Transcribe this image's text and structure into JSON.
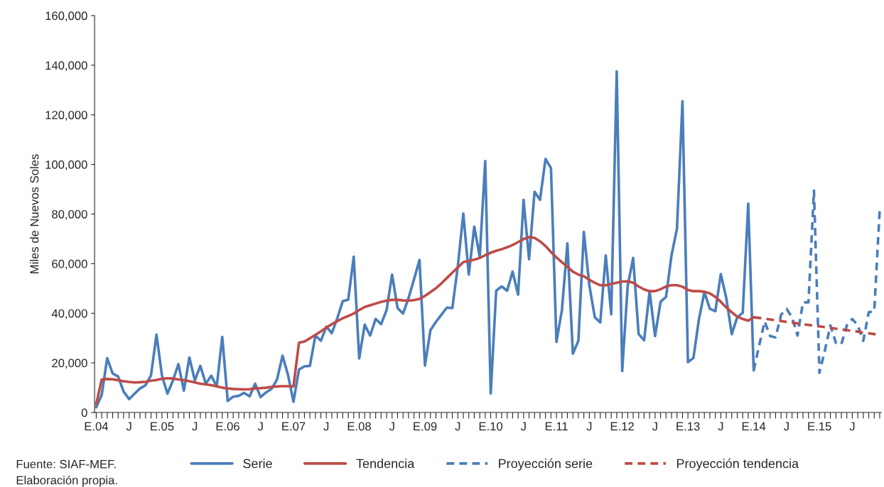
{
  "chart_data": {
    "type": "line",
    "ylabel": "Miles de Nuevos Soles",
    "categories": [
      "E.04",
      null,
      null,
      null,
      null,
      null,
      "J",
      null,
      null,
      null,
      null,
      null,
      "E.05",
      null,
      null,
      null,
      null,
      null,
      "J",
      null,
      null,
      null,
      null,
      null,
      "E.06",
      null,
      null,
      null,
      null,
      null,
      "J",
      null,
      null,
      null,
      null,
      null,
      "E.07",
      null,
      null,
      null,
      null,
      null,
      "J",
      null,
      null,
      null,
      null,
      null,
      "E.08",
      null,
      null,
      null,
      null,
      null,
      "J",
      null,
      null,
      null,
      null,
      null,
      "E.09",
      null,
      null,
      null,
      null,
      null,
      "J",
      null,
      null,
      null,
      null,
      null,
      "E.10",
      null,
      null,
      null,
      null,
      null,
      "J",
      null,
      null,
      null,
      null,
      null,
      "E.11",
      null,
      null,
      null,
      null,
      null,
      "J",
      null,
      null,
      null,
      null,
      null,
      "E.12",
      null,
      null,
      null,
      null,
      null,
      "J",
      null,
      null,
      null,
      null,
      null,
      "E.13",
      null,
      null,
      null,
      null,
      null,
      "J",
      null,
      null,
      null,
      null,
      null,
      "E.14",
      null,
      null,
      null,
      null,
      null,
      "J",
      null,
      null,
      null,
      null,
      null,
      "E.15",
      null,
      null,
      null,
      null,
      null,
      "J",
      null,
      null,
      null,
      null,
      null
    ],
    "series": [
      {
        "name": "Serie",
        "color": "#4a7ebb",
        "line_style": "solid",
        "values": [
          2100,
          7100,
          21900,
          15700,
          14500,
          8400,
          5400,
          7600,
          9700,
          11000,
          15000,
          31400,
          14800,
          7600,
          12900,
          19500,
          8800,
          22200,
          12900,
          18800,
          11600,
          14800,
          10500,
          30500,
          4600,
          6400,
          6700,
          7900,
          6500,
          11600,
          6200,
          8100,
          9500,
          13300,
          22900,
          15200,
          4300,
          17300,
          18600,
          18800,
          31000,
          28900,
          34600,
          32000,
          38000,
          44900,
          45500,
          62800,
          21800,
          35400,
          31000,
          37700,
          35600,
          41300,
          55600,
          42100,
          39900,
          46100,
          53700,
          61500,
          18900,
          33200,
          36500,
          39400,
          42300,
          42100,
          59000,
          80200,
          55600,
          74900,
          62800,
          101400,
          7700,
          49100,
          50800,
          49100,
          56800,
          47500,
          85700,
          61800,
          89000,
          85700,
          102200,
          98500,
          28400,
          41300,
          68200,
          23700,
          28900,
          72800,
          51300,
          38400,
          36300,
          63300,
          39600,
          137500,
          16700,
          51000,
          62300,
          31600,
          29100,
          48900,
          30800,
          44600,
          46600,
          63300,
          74200,
          125500,
          20300,
          22000,
          37500,
          48500,
          41800,
          40800,
          55800,
          46100,
          31600,
          38400,
          40200,
          84200,
          17000,
          null,
          null,
          null,
          null,
          null,
          null,
          null,
          null,
          null,
          null,
          null,
          null,
          null,
          null,
          null,
          null,
          null,
          null,
          null,
          null,
          null,
          null,
          null
        ]
      },
      {
        "name": "Tendencia",
        "color": "#be4b48",
        "line_style": "solid",
        "values": [
          3300,
          13300,
          13500,
          13400,
          13000,
          12600,
          12300,
          12100,
          12200,
          12400,
          12800,
          13100,
          13600,
          13800,
          13700,
          13300,
          13000,
          12600,
          12100,
          11600,
          11300,
          11000,
          10500,
          10000,
          9700,
          9500,
          9400,
          9300,
          9400,
          9700,
          9800,
          10000,
          10300,
          10500,
          10600,
          10600,
          10500,
          28100,
          28600,
          29900,
          31300,
          32700,
          34200,
          35600,
          36800,
          38000,
          38900,
          39900,
          41300,
          42500,
          43200,
          43900,
          44600,
          45100,
          45400,
          45400,
          45200,
          45100,
          45300,
          45800,
          47000,
          48500,
          50100,
          52000,
          54200,
          56400,
          58500,
          60600,
          61100,
          61600,
          62300,
          63400,
          64400,
          65200,
          65800,
          66600,
          67500,
          68700,
          69900,
          70700,
          70400,
          69000,
          67100,
          64700,
          62500,
          60600,
          58700,
          56800,
          55600,
          54900,
          53500,
          52300,
          51300,
          51300,
          51800,
          52300,
          52800,
          52900,
          52300,
          50800,
          49600,
          48900,
          48900,
          49700,
          50800,
          51300,
          51300,
          50700,
          49400,
          48900,
          48900,
          48700,
          48000,
          46600,
          44600,
          42300,
          40400,
          38600,
          37700,
          37000,
          38400,
          null,
          null,
          null,
          null,
          null,
          null,
          null,
          null,
          null,
          null,
          null,
          null,
          null,
          null,
          null,
          null,
          null,
          null,
          null,
          null,
          null,
          null,
          null
        ]
      },
      {
        "name": "Proyección serie",
        "color": "#4a7ebb",
        "line_style": "dashed",
        "values": [
          null,
          null,
          null,
          null,
          null,
          null,
          null,
          null,
          null,
          null,
          null,
          null,
          null,
          null,
          null,
          null,
          null,
          null,
          null,
          null,
          null,
          null,
          null,
          null,
          null,
          null,
          null,
          null,
          null,
          null,
          null,
          null,
          null,
          null,
          null,
          null,
          null,
          null,
          null,
          null,
          null,
          null,
          null,
          null,
          null,
          null,
          null,
          null,
          null,
          null,
          null,
          null,
          null,
          null,
          null,
          null,
          null,
          null,
          null,
          null,
          null,
          null,
          null,
          null,
          null,
          null,
          null,
          null,
          null,
          null,
          null,
          null,
          null,
          null,
          null,
          null,
          null,
          null,
          null,
          null,
          null,
          null,
          null,
          null,
          null,
          null,
          null,
          null,
          null,
          null,
          null,
          null,
          null,
          null,
          null,
          null,
          null,
          null,
          null,
          null,
          null,
          null,
          null,
          null,
          null,
          null,
          null,
          null,
          null,
          null,
          null,
          null,
          null,
          null,
          null,
          null,
          null,
          null,
          null,
          null,
          17000,
          27000,
          36700,
          30800,
          30300,
          39400,
          41800,
          38400,
          31000,
          44400,
          44400,
          89500,
          16000,
          25100,
          35100,
          28100,
          27500,
          35100,
          37700,
          35100,
          28900,
          40400,
          40800,
          81600
        ]
      },
      {
        "name": "Proyección tendencia",
        "color": "#be4b48",
        "line_style": "dashed",
        "values": [
          null,
          null,
          null,
          null,
          null,
          null,
          null,
          null,
          null,
          null,
          null,
          null,
          null,
          null,
          null,
          null,
          null,
          null,
          null,
          null,
          null,
          null,
          null,
          null,
          null,
          null,
          null,
          null,
          null,
          null,
          null,
          null,
          null,
          null,
          null,
          null,
          null,
          null,
          null,
          null,
          null,
          null,
          null,
          null,
          null,
          null,
          null,
          null,
          null,
          null,
          null,
          null,
          null,
          null,
          null,
          null,
          null,
          null,
          null,
          null,
          null,
          null,
          null,
          null,
          null,
          null,
          null,
          null,
          null,
          null,
          null,
          null,
          null,
          null,
          null,
          null,
          null,
          null,
          null,
          null,
          null,
          null,
          null,
          null,
          null,
          null,
          null,
          null,
          null,
          null,
          null,
          null,
          null,
          null,
          null,
          null,
          null,
          null,
          null,
          null,
          null,
          null,
          null,
          null,
          null,
          null,
          null,
          null,
          null,
          null,
          null,
          null,
          null,
          null,
          null,
          null,
          null,
          null,
          null,
          null,
          38400,
          38100,
          37800,
          37500,
          37200,
          36900,
          36500,
          36200,
          35900,
          35600,
          35300,
          35000,
          34700,
          34400,
          34100,
          33800,
          33500,
          33200,
          32900,
          32600,
          32200,
          31900,
          31600,
          31300
        ]
      }
    ],
    "ylim": [
      0,
      160000
    ],
    "yticks": [
      0,
      {
        "value": 20000,
        "label": "20,000"
      },
      {
        "value": 40000,
        "label": "40,000"
      },
      {
        "value": 60000,
        "label": "60,000"
      },
      {
        "value": 80000,
        "label": "80,000"
      },
      {
        "value": 100000,
        "label": "100,000"
      },
      {
        "value": 120000,
        "label": "120,000"
      },
      {
        "value": 140000,
        "label": "140,000"
      },
      {
        "value": 160000,
        "label": "160,000"
      }
    ],
    "grid": false,
    "legend": "bottom",
    "marker": "none",
    "annotations": [
      "Fuente: SIAF-MEF.",
      "Elaboración propia."
    ]
  }
}
